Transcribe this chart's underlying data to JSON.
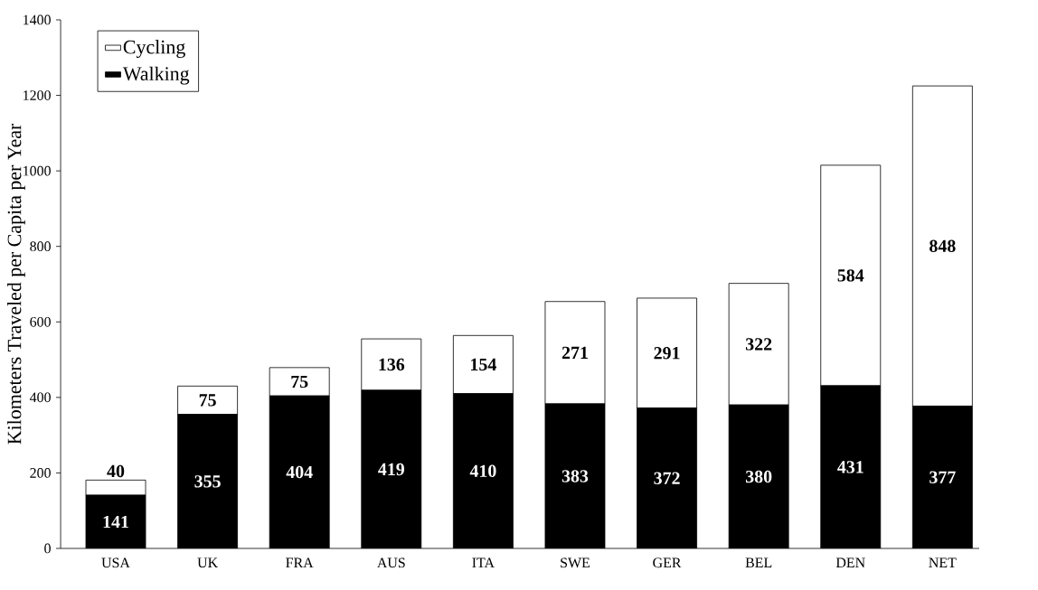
{
  "chart_data": {
    "type": "bar",
    "ylabel": "Kilometers Traveled per Capita per Year",
    "categories": [
      "USA",
      "UK",
      "FRA",
      "AUS",
      "ITA",
      "SWE",
      "GER",
      "BEL",
      "DEN",
      "NET"
    ],
    "series": [
      {
        "name": "Walking",
        "color": "#000000",
        "values": [
          141,
          355,
          404,
          419,
          410,
          383,
          372,
          380,
          431,
          377
        ]
      },
      {
        "name": "Cycling",
        "color": "#ffffff",
        "values": [
          40,
          75,
          75,
          136,
          154,
          271,
          291,
          322,
          584,
          848
        ]
      }
    ],
    "stacked": true,
    "data_labels": true,
    "legend": "top left",
    "grid": false,
    "ylim": [
      0,
      1400
    ],
    "yticks": [
      0,
      200,
      400,
      600,
      800,
      1000,
      1200,
      1400
    ]
  }
}
